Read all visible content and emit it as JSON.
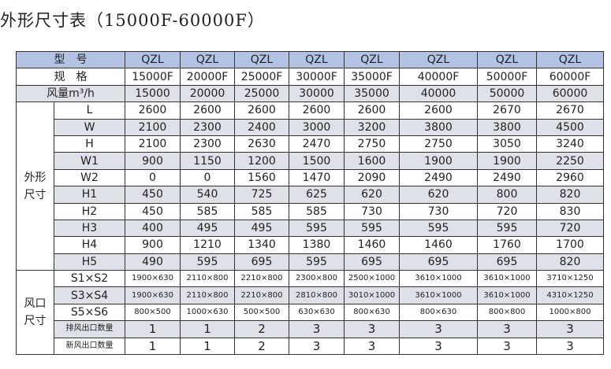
{
  "title": "外形尺寸表（15000F-60000F）",
  "table": {
    "model_label": "型　号",
    "spec_label": "规　格",
    "airflow_label": "风量m³/h",
    "models": [
      "QZL",
      "QZL",
      "QZL",
      "QZL",
      "QZL",
      "QZL",
      "QZL",
      "QZL"
    ],
    "specs": [
      "15000F",
      "20000F",
      "25000F",
      "30000F",
      "35000F",
      "40000F",
      "50000F",
      "60000F"
    ],
    "airflow": [
      "15000",
      "20000",
      "25000",
      "30000",
      "35000",
      "40000",
      "50000",
      "60000"
    ],
    "dim_group": "外形尺寸",
    "dims": [
      {
        "label": "L",
        "values": [
          "2600",
          "2600",
          "2600",
          "2600",
          "2600",
          "2600",
          "2670",
          "2670"
        ]
      },
      {
        "label": "W",
        "values": [
          "2100",
          "2300",
          "2400",
          "3000",
          "3200",
          "3800",
          "3800",
          "4500"
        ]
      },
      {
        "label": "H",
        "values": [
          "2100",
          "2300",
          "2630",
          "2470",
          "2750",
          "2750",
          "3050",
          "3240"
        ]
      },
      {
        "label": "W1",
        "values": [
          "900",
          "1150",
          "1200",
          "1500",
          "1600",
          "1900",
          "1900",
          "2250"
        ]
      },
      {
        "label": "W2",
        "values": [
          "0",
          "0",
          "1560",
          "1470",
          "2090",
          "2490",
          "2490",
          "2960"
        ]
      },
      {
        "label": "H1",
        "values": [
          "450",
          "540",
          "725",
          "625",
          "620",
          "620",
          "800",
          "820"
        ]
      },
      {
        "label": "H2",
        "values": [
          "450",
          "585",
          "585",
          "585",
          "730",
          "730",
          "720",
          "830"
        ]
      },
      {
        "label": "H3",
        "values": [
          "400",
          "495",
          "495",
          "595",
          "595",
          "595",
          "595",
          "720"
        ]
      },
      {
        "label": "H4",
        "values": [
          "900",
          "1210",
          "1340",
          "1380",
          "1460",
          "1460",
          "1760",
          "1700"
        ]
      },
      {
        "label": "H5",
        "values": [
          "490",
          "595",
          "695",
          "595",
          "695",
          "695",
          "695",
          "820"
        ]
      }
    ],
    "outlet_group": "风口尺寸",
    "outlets": [
      {
        "label": "S1×S2",
        "values": [
          "1900×630",
          "2110×800",
          "2210×800",
          "2300×800",
          "2500×1000",
          "3610×1000",
          "3610×1000",
          "3710×1250"
        ]
      },
      {
        "label": "S3×S4",
        "values": [
          "1900×630",
          "2110×800",
          "2210×800",
          "2810×800",
          "3010×1000",
          "3610×1000",
          "3610×1000",
          "4310×1250"
        ]
      },
      {
        "label": "S5×S6",
        "values": [
          "800×500",
          "1000×630",
          "500×500",
          "630×630",
          "800×630",
          "800×630",
          "800×800",
          "1000×800"
        ]
      },
      {
        "label": "排风出口数量",
        "values": [
          "1",
          "1",
          "2",
          "3",
          "3",
          "3",
          "3",
          "3"
        ]
      },
      {
        "label": "新风出口数量",
        "values": [
          "1",
          "1",
          "2",
          "3",
          "3",
          "3",
          "3",
          "3"
        ]
      }
    ]
  }
}
